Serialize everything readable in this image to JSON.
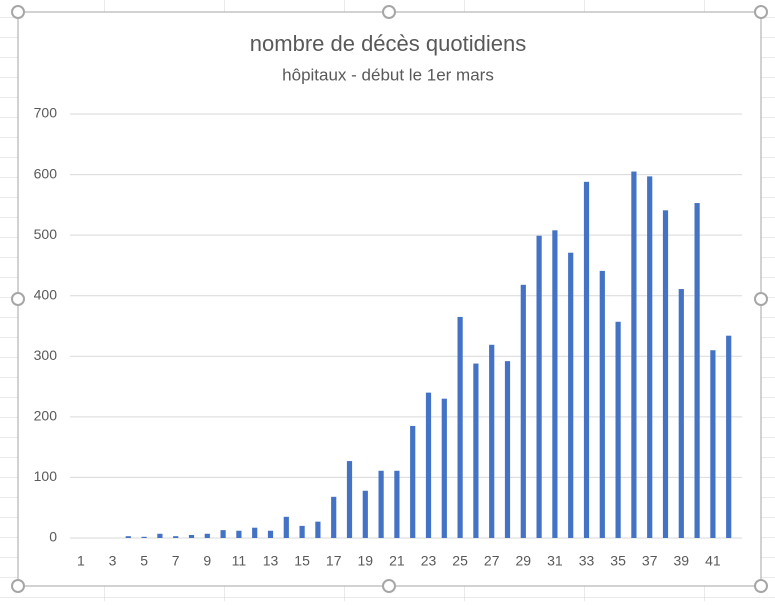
{
  "chart_data": {
    "type": "bar",
    "title": "nombre de décès quotidiens",
    "subtitle": "hôpitaux - début le 1er mars",
    "categories": [
      "1",
      null,
      "3",
      null,
      "5",
      null,
      "7",
      null,
      "9",
      null,
      "11",
      null,
      "13",
      null,
      "15",
      null,
      "17",
      null,
      "19",
      null,
      "21",
      null,
      "23",
      null,
      "25",
      null,
      "27",
      null,
      "29",
      null,
      "31",
      null,
      "33",
      null,
      "35",
      null,
      "37",
      null,
      "39",
      null,
      "41",
      null
    ],
    "values": [
      0,
      0,
      0,
      3,
      2,
      7,
      3,
      5,
      7,
      13,
      12,
      17,
      12,
      35,
      20,
      27,
      68,
      127,
      78,
      111,
      111,
      185,
      240,
      230,
      365,
      288,
      319,
      292,
      418,
      499,
      508,
      471,
      588,
      441,
      357,
      605,
      597,
      541,
      411,
      553,
      310,
      334
    ],
    "color": "#4472c4",
    "ylim": [
      0,
      700
    ],
    "yticks": [
      0,
      100,
      200,
      300,
      400,
      500,
      600,
      700
    ],
    "grid": true
  }
}
